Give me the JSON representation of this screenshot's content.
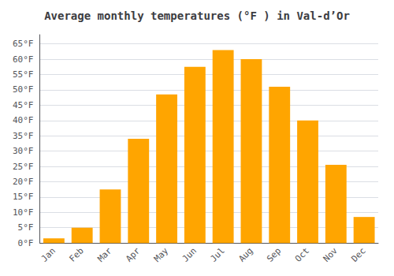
{
  "chart_data": {
    "type": "bar",
    "title": "Average monthly temperatures (°F ) in Val-d’Or",
    "categories": [
      "Jan",
      "Feb",
      "Mar",
      "Apr",
      "May",
      "Jun",
      "Jul",
      "Aug",
      "Sep",
      "Oct",
      "Nov",
      "Dec"
    ],
    "values": [
      1.5,
      5.0,
      17.5,
      34.0,
      48.5,
      57.5,
      63.0,
      60.0,
      51.0,
      40.0,
      25.5,
      8.5
    ],
    "color": "#FFA500",
    "ylim": [
      0,
      68
    ],
    "yticks": [
      {
        "value": 0,
        "label": "0°F"
      },
      {
        "value": 5,
        "label": "5°F"
      },
      {
        "value": 10,
        "label": "10°F"
      },
      {
        "value": 15,
        "label": "15°F"
      },
      {
        "value": 20,
        "label": "20°F"
      },
      {
        "value": 25,
        "label": "25°F"
      },
      {
        "value": 30,
        "label": "30°F"
      },
      {
        "value": 35,
        "label": "35°F"
      },
      {
        "value": 40,
        "label": "40°F"
      },
      {
        "value": 45,
        "label": "45°F"
      },
      {
        "value": 50,
        "label": "50°F"
      },
      {
        "value": 55,
        "label": "55°F"
      },
      {
        "value": 60,
        "label": "60°F"
      },
      {
        "value": 65,
        "label": "65°F"
      }
    ],
    "grid": true
  }
}
